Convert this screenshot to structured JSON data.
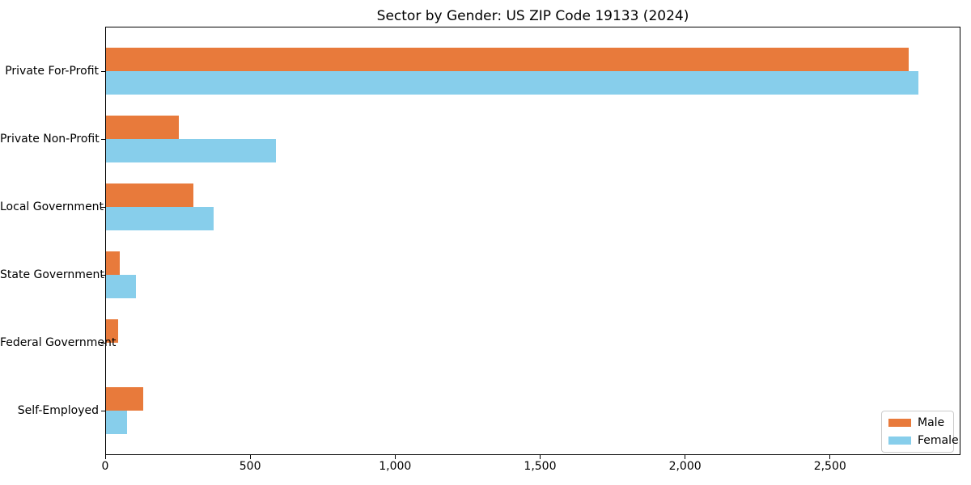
{
  "title": "Sector by Gender: US ZIP Code 19133 (2024)",
  "colors": {
    "male": "#E87A3B",
    "female": "#87CEEB",
    "axis": "#000000",
    "background": "#FFFFFF",
    "legend_border": "#CCCCCC"
  },
  "legend": {
    "position": "lower right",
    "items": [
      {
        "label": "Male",
        "color": "#E87A3B"
      },
      {
        "label": "Female",
        "color": "#87CEEB"
      }
    ]
  },
  "chart_data": {
    "type": "bar",
    "orientation": "horizontal",
    "title": "Sector by Gender: US ZIP Code 19133 (2024)",
    "categories": [
      "Private For-Profit",
      "Private Non-Profit",
      "Local Government",
      "State Government",
      "Federal Government",
      "Self-Employed"
    ],
    "series": [
      {
        "name": "Male",
        "color": "#E87A3B",
        "values": [
          2770,
          255,
          305,
          50,
          45,
          130
        ]
      },
      {
        "name": "Female",
        "color": "#87CEEB",
        "values": [
          2805,
          590,
          375,
          105,
          0,
          75
        ]
      }
    ],
    "xlabel": "",
    "ylabel": "",
    "xlim": [
      0,
      2950
    ],
    "x_ticks": [
      0,
      500,
      1000,
      1500,
      2000,
      2500
    ],
    "x_tick_labels": [
      "0",
      "500",
      "1,000",
      "1,500",
      "2,000",
      "2,500"
    ],
    "grid": false,
    "legend_position": "lower right"
  }
}
